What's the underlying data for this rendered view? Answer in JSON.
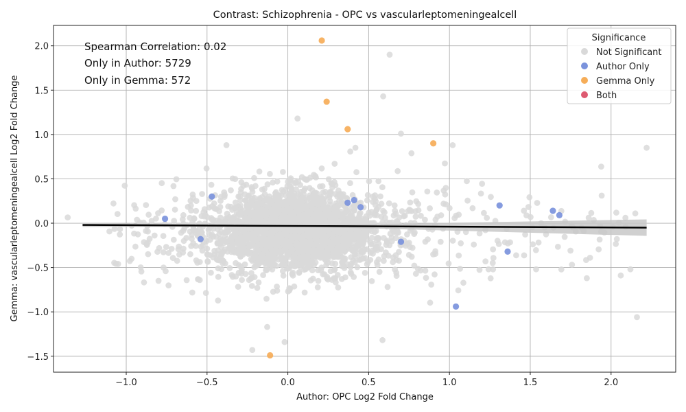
{
  "chart_data": {
    "type": "scatter",
    "title": "Contrast: Schizophrenia - OPC vs vascularleptomeningealcell",
    "xlabel": "Author: OPC Log2 Fold Change",
    "ylabel": "Gemma: vascularleptomeningealcell Log2 Fold Change",
    "xlim": [
      -1.45,
      2.4
    ],
    "ylim": [
      -1.68,
      2.23
    ],
    "x_ticks": [
      -1.0,
      -0.5,
      0.0,
      0.5,
      1.0,
      1.5,
      2.0
    ],
    "x_tick_labels": [
      "−1.0",
      "−0.5",
      "0.0",
      "0.5",
      "1.0",
      "1.5",
      "2.0"
    ],
    "y_ticks": [
      -1.5,
      -1.0,
      -0.5,
      0.0,
      0.5,
      1.0,
      1.5,
      2.0
    ],
    "y_tick_labels": [
      "−1.5",
      "−1.0",
      "−0.5",
      "0.0",
      "0.5",
      "1.0",
      "1.5",
      "2.0"
    ],
    "grid": true,
    "annotations": [
      "Spearman Correlation: 0.02",
      "Only in Author: 5729",
      "Only in Gemma: 572"
    ],
    "legend": {
      "title": "Significance",
      "position": "top-right",
      "entries": [
        {
          "label": "Not Significant",
          "color": "#d9d9d9"
        },
        {
          "label": "Author Only",
          "color": "#7b93dc"
        },
        {
          "label": "Gemma Only",
          "color": "#f6ad58"
        },
        {
          "label": "Both",
          "color": "#dd5a70"
        }
      ]
    },
    "regression_line": {
      "x": [
        -1.27,
        2.22
      ],
      "y": [
        -0.02,
        -0.05
      ],
      "color": "#000000"
    },
    "series": [
      {
        "name": "Gemma Only",
        "color": "#f6ad58",
        "points": [
          {
            "x": 0.21,
            "y": 2.06
          },
          {
            "x": 0.24,
            "y": 1.37
          },
          {
            "x": 0.37,
            "y": 1.06
          },
          {
            "x": 0.9,
            "y": 0.9
          },
          {
            "x": -0.11,
            "y": -1.49
          }
        ]
      },
      {
        "name": "Author Only",
        "color": "#7b93dc",
        "points": [
          {
            "x": -0.47,
            "y": 0.3
          },
          {
            "x": -0.76,
            "y": 0.05
          },
          {
            "x": -0.54,
            "y": -0.18
          },
          {
            "x": 0.37,
            "y": 0.23
          },
          {
            "x": 0.41,
            "y": 0.26
          },
          {
            "x": 0.45,
            "y": 0.18
          },
          {
            "x": 0.7,
            "y": -0.21
          },
          {
            "x": 1.04,
            "y": -0.94
          },
          {
            "x": 1.31,
            "y": 0.2
          },
          {
            "x": 1.36,
            "y": -0.32
          },
          {
            "x": 1.64,
            "y": 0.14
          },
          {
            "x": 1.68,
            "y": 0.09
          }
        ]
      }
    ]
  }
}
